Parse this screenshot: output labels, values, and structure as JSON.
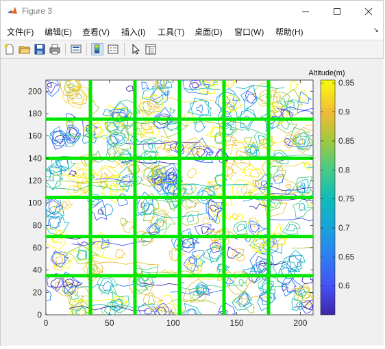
{
  "window": {
    "title": "Figure 3",
    "controls": [
      "minimize",
      "maximize",
      "close"
    ]
  },
  "menubar": {
    "items": [
      "文件(F)",
      "编辑(E)",
      "查看(V)",
      "插入(I)",
      "工具(T)",
      "桌面(D)",
      "窗口(W)",
      "帮助(H)"
    ],
    "overflow": "↘"
  },
  "toolbar": {
    "icons": [
      "new-figure-icon",
      "open-file-icon",
      "save-icon",
      "print-icon",
      "link-plot-icon",
      "colorbar-toggle-icon",
      "legend-toggle-icon",
      "edit-plot-arrow-icon",
      "property-inspector-icon"
    ],
    "selected": "colorbar-toggle-icon"
  },
  "chart_data": {
    "type": "contour",
    "x_ticks": [
      0,
      50,
      100,
      150,
      200
    ],
    "y_ticks": [
      0,
      20,
      40,
      60,
      80,
      100,
      120,
      140,
      160,
      180,
      200
    ],
    "xlim": [
      0,
      210
    ],
    "ylim": [
      0,
      210
    ],
    "vertical_lines_x": [
      35,
      70,
      105,
      140,
      175
    ],
    "horizontal_lines_y": [
      35,
      70,
      105,
      140,
      175
    ],
    "grid_line_color": "#00e600",
    "colorbar": {
      "label": "Altitude(m)",
      "ticks": [
        0.6,
        0.65,
        0.7,
        0.75,
        0.8,
        0.85,
        0.9,
        0.95
      ],
      "tick_labels": [
        "0.6",
        "0.65",
        "0.7",
        "0.75",
        "0.8",
        "0.85",
        "0.9",
        "0.95"
      ],
      "range": [
        0.55,
        0.955
      ],
      "colormap": "parula"
    }
  }
}
